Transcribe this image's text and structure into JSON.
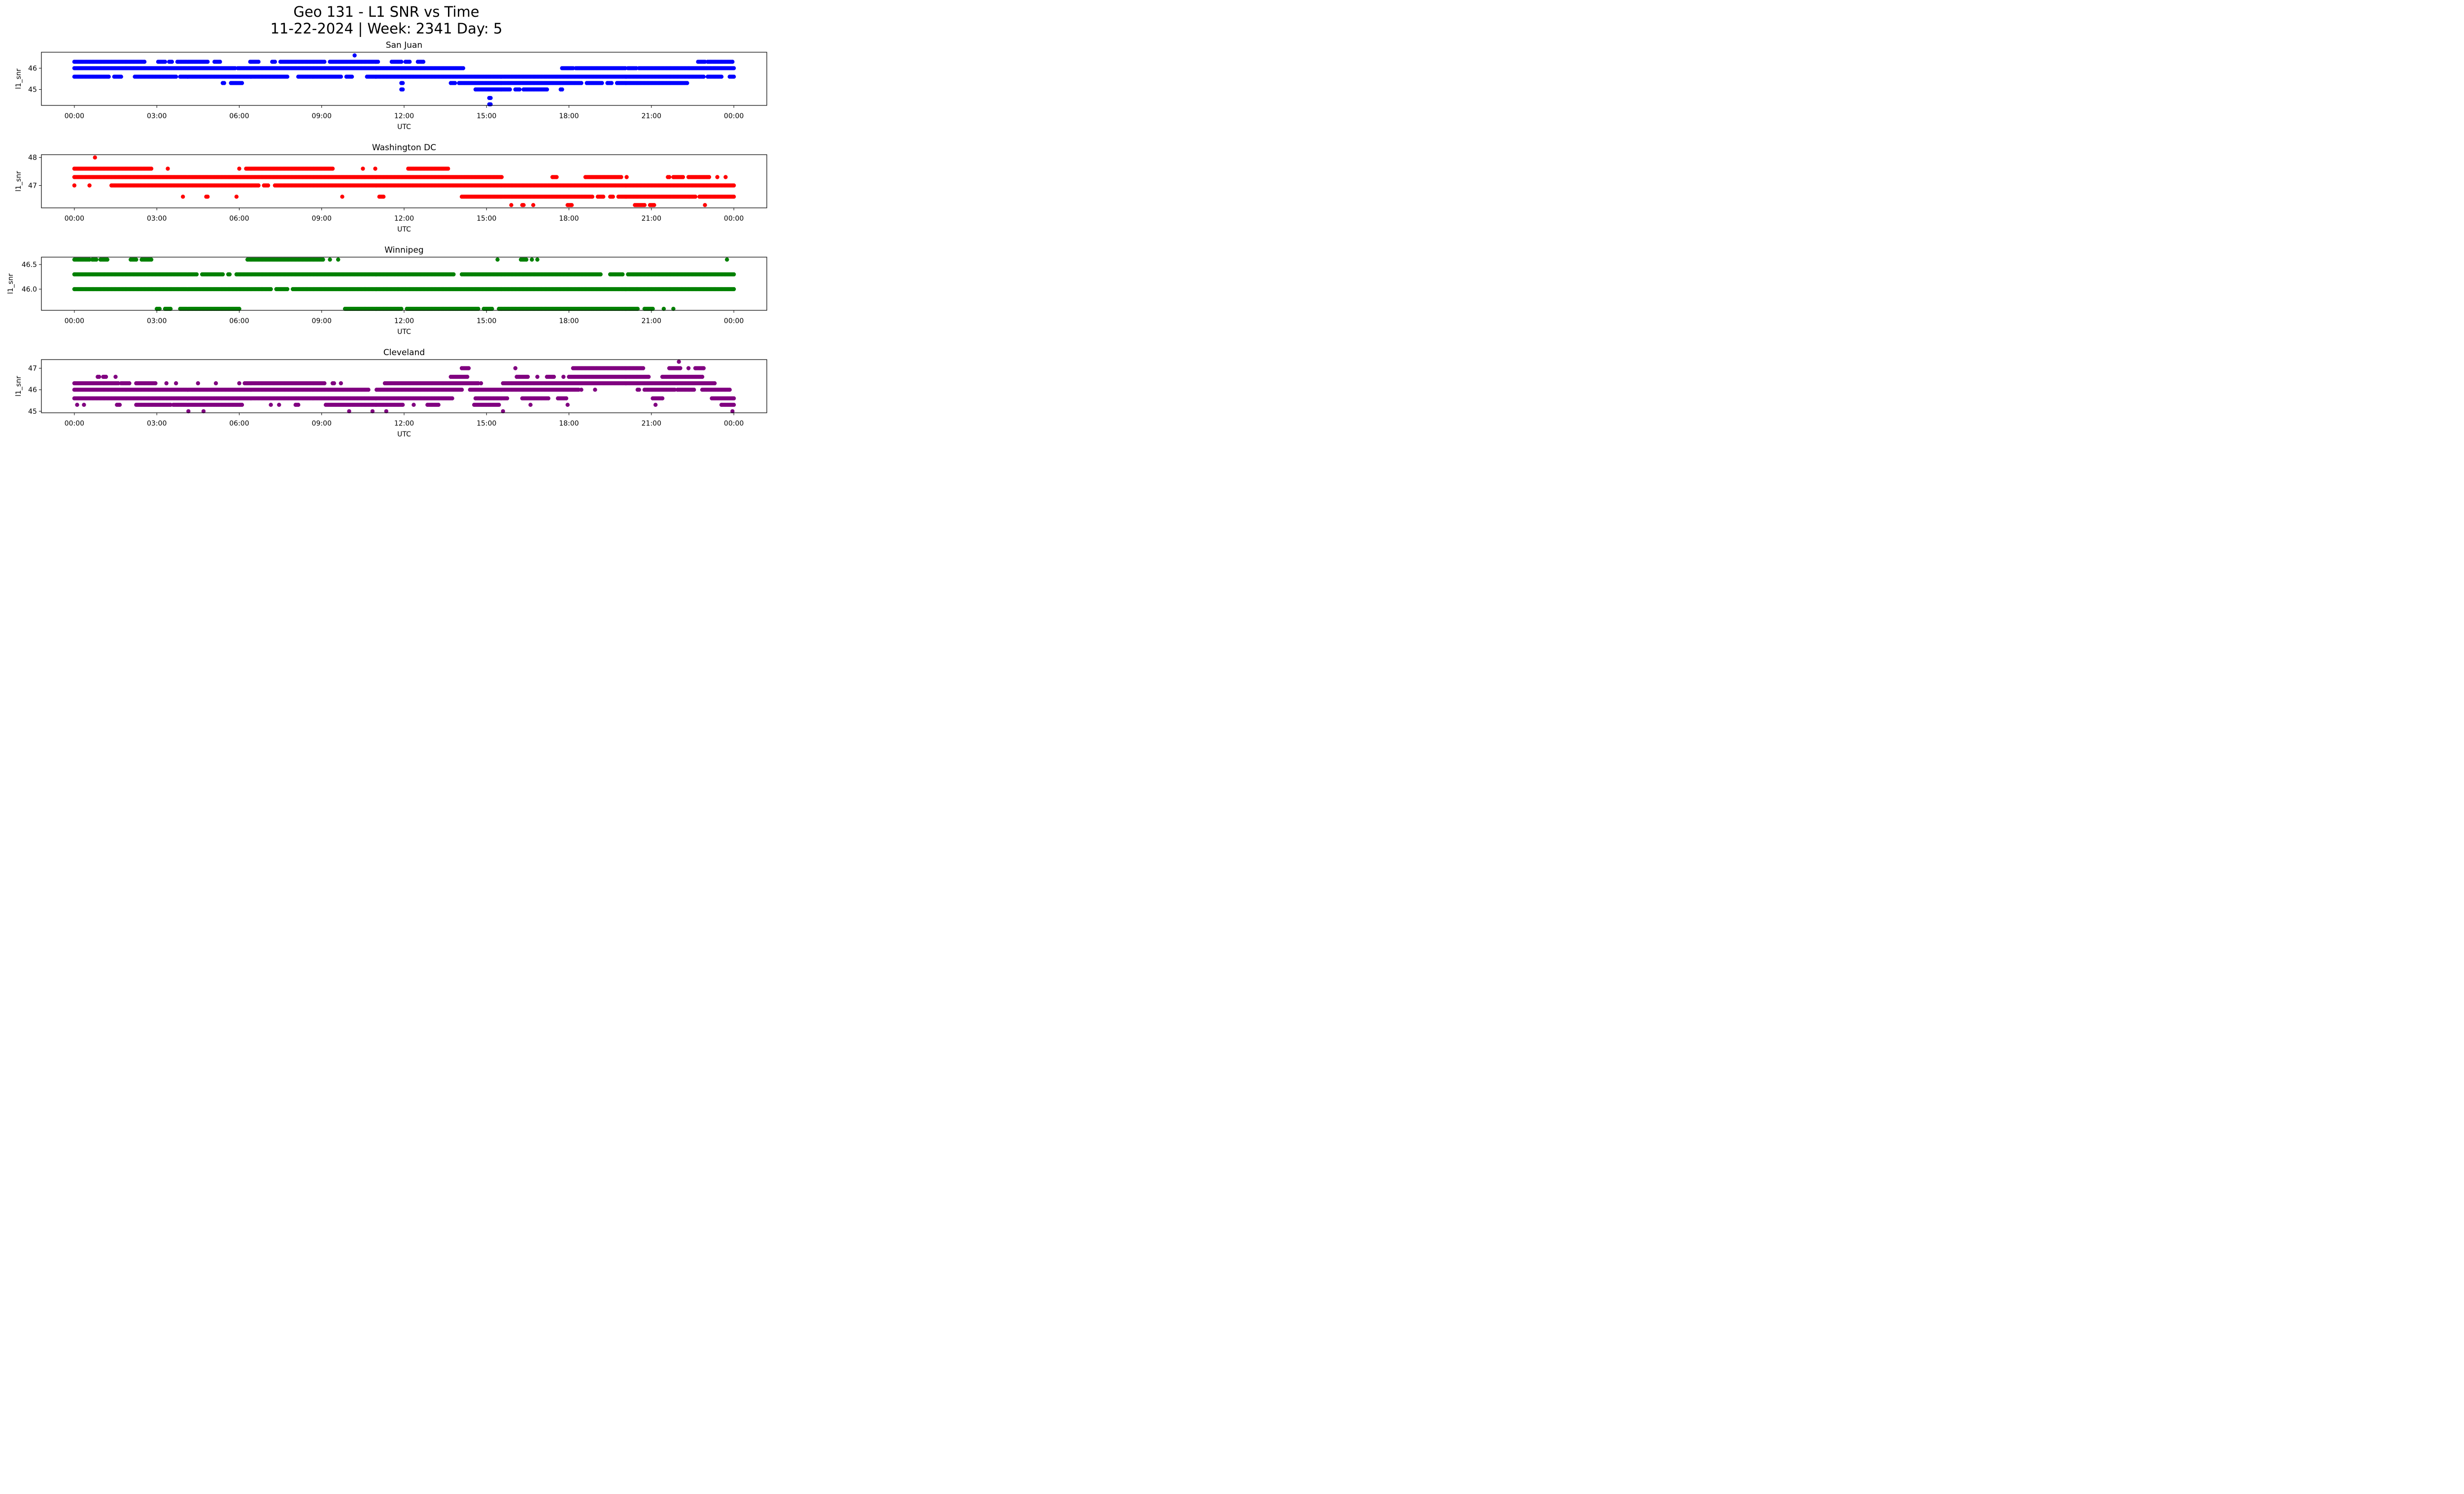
{
  "title_line1": "Geo 131 - L1 SNR vs Time",
  "title_line2": "11-22-2024 | Week: 2341 Day: 5",
  "chart_data": [
    {
      "type": "scatter",
      "title": "San Juan",
      "xlabel": "UTC",
      "ylabel": "l1_snr",
      "color": "#0000ff",
      "xlim_hours": [
        -1.2,
        25.2
      ],
      "ylim": [
        44.25,
        46.75
      ],
      "yticks": [
        45,
        46
      ],
      "ytick_labels": [
        "45",
        "46"
      ],
      "xticks_hours": [
        0,
        3,
        6,
        9,
        12,
        15,
        18,
        21,
        24
      ],
      "xtick_labels": [
        "00:00",
        "03:00",
        "06:00",
        "09:00",
        "12:00",
        "15:00",
        "18:00",
        "21:00",
        "00:00"
      ],
      "grid": false,
      "segments": [
        {
          "y": 46.6,
          "ranges": [
            [
              10.2,
              10.2
            ]
          ]
        },
        {
          "y": 46.3,
          "ranges": [
            [
              0.0,
              2.55
            ],
            [
              3.05,
              3.3
            ],
            [
              3.45,
              3.55
            ],
            [
              3.75,
              4.85
            ],
            [
              5.1,
              5.3
            ],
            [
              6.4,
              6.7
            ],
            [
              7.2,
              7.3
            ],
            [
              7.5,
              9.1
            ],
            [
              9.3,
              11.05
            ],
            [
              11.55,
              11.9
            ],
            [
              12.05,
              12.2
            ],
            [
              12.5,
              12.7
            ],
            [
              22.7,
              22.95
            ],
            [
              23.05,
              23.95
            ]
          ]
        },
        {
          "y": 46.0,
          "ranges": [
            [
              0.0,
              5.85
            ],
            [
              5.95,
              14.15
            ],
            [
              17.75,
              18.15
            ],
            [
              18.25,
              20.05
            ],
            [
              20.15,
              20.45
            ],
            [
              20.55,
              24.0
            ]
          ]
        },
        {
          "y": 45.6,
          "ranges": [
            [
              0.0,
              1.25
            ],
            [
              1.45,
              1.7
            ],
            [
              2.2,
              3.7
            ],
            [
              3.85,
              7.75
            ],
            [
              8.15,
              9.7
            ],
            [
              9.9,
              10.1
            ],
            [
              10.65,
              22.9
            ],
            [
              23.05,
              23.55
            ],
            [
              23.85,
              24.0
            ]
          ]
        },
        {
          "y": 45.3,
          "ranges": [
            [
              5.4,
              5.45
            ],
            [
              5.7,
              6.1
            ],
            [
              11.9,
              11.95
            ],
            [
              13.7,
              13.85
            ],
            [
              14.0,
              18.45
            ],
            [
              18.65,
              19.2
            ],
            [
              19.4,
              19.55
            ],
            [
              19.75,
              22.3
            ]
          ]
        },
        {
          "y": 45.0,
          "ranges": [
            [
              11.9,
              11.95
            ],
            [
              14.6,
              15.85
            ],
            [
              16.05,
              16.2
            ],
            [
              16.35,
              17.2
            ],
            [
              17.7,
              17.75
            ]
          ]
        },
        {
          "y": 44.6,
          "ranges": [
            [
              15.1,
              15.15
            ]
          ]
        },
        {
          "y": 44.3,
          "ranges": [
            [
              15.1,
              15.15
            ]
          ]
        }
      ]
    },
    {
      "type": "scatter",
      "title": "Washington DC",
      "xlabel": "UTC",
      "ylabel": "l1_snr",
      "color": "#ff0000",
      "xlim_hours": [
        -1.2,
        25.2
      ],
      "ylim": [
        46.2,
        48.1
      ],
      "yticks": [
        47,
        48
      ],
      "ytick_labels": [
        "47",
        "48"
      ],
      "xticks_hours": [
        0,
        3,
        6,
        9,
        12,
        15,
        18,
        21,
        24
      ],
      "xtick_labels": [
        "00:00",
        "03:00",
        "06:00",
        "09:00",
        "12:00",
        "15:00",
        "18:00",
        "21:00",
        "00:00"
      ],
      "grid": false,
      "segments": [
        {
          "y": 48.0,
          "ranges": [
            [
              0.75,
              0.75
            ]
          ]
        },
        {
          "y": 47.6,
          "ranges": [
            [
              0.0,
              2.8
            ],
            [
              3.4,
              3.4
            ],
            [
              6.0,
              6.0
            ],
            [
              6.25,
              9.4
            ],
            [
              10.5,
              10.5
            ],
            [
              10.95,
              10.95
            ],
            [
              12.15,
              13.6
            ]
          ]
        },
        {
          "y": 47.3,
          "ranges": [
            [
              0.0,
              15.55
            ],
            [
              17.4,
              17.55
            ],
            [
              18.6,
              19.9
            ],
            [
              20.1,
              20.1
            ],
            [
              21.6,
              21.65
            ],
            [
              21.8,
              22.15
            ],
            [
              22.35,
              23.1
            ],
            [
              23.4,
              23.4
            ],
            [
              23.7,
              23.7
            ]
          ]
        },
        {
          "y": 47.0,
          "ranges": [
            [
              0.0,
              0.0
            ],
            [
              0.55,
              0.55
            ],
            [
              1.35,
              6.7
            ],
            [
              6.9,
              7.05
            ],
            [
              7.3,
              24.0
            ]
          ]
        },
        {
          "y": 46.6,
          "ranges": [
            [
              3.95,
              3.95
            ],
            [
              4.8,
              4.85
            ],
            [
              5.9,
              5.9
            ],
            [
              9.75,
              9.75
            ],
            [
              11.1,
              11.25
            ],
            [
              14.1,
              18.85
            ],
            [
              19.05,
              19.25
            ],
            [
              19.5,
              19.6
            ],
            [
              19.8,
              22.6
            ],
            [
              22.75,
              24.0
            ]
          ]
        },
        {
          "y": 46.3,
          "ranges": [
            [
              15.9,
              15.9
            ],
            [
              16.3,
              16.35
            ],
            [
              16.7,
              16.7
            ],
            [
              17.95,
              18.1
            ],
            [
              20.4,
              20.75
            ],
            [
              20.95,
              21.1
            ],
            [
              22.95,
              22.95
            ]
          ]
        }
      ]
    },
    {
      "type": "scatter",
      "title": "Winnipeg",
      "xlabel": "UTC",
      "ylabel": "l1_snr",
      "color": "#008000",
      "xlim_hours": [
        -1.2,
        25.2
      ],
      "ylim": [
        45.57,
        46.65
      ],
      "yticks": [
        46.0,
        46.5
      ],
      "ytick_labels": [
        "46.0",
        "46.5"
      ],
      "xticks_hours": [
        0,
        3,
        6,
        9,
        12,
        15,
        18,
        21,
        24
      ],
      "xtick_labels": [
        "00:00",
        "03:00",
        "06:00",
        "09:00",
        "12:00",
        "15:00",
        "18:00",
        "21:00",
        "00:00"
      ],
      "grid": false,
      "segments": [
        {
          "y": 46.6,
          "ranges": [
            [
              0.0,
              0.55
            ],
            [
              0.65,
              0.8
            ],
            [
              0.95,
              1.2
            ],
            [
              2.05,
              2.25
            ],
            [
              2.45,
              2.8
            ],
            [
              6.3,
              9.05
            ],
            [
              9.3,
              9.3
            ],
            [
              9.6,
              9.6
            ],
            [
              15.4,
              15.4
            ],
            [
              16.25,
              16.45
            ],
            [
              16.65,
              16.65
            ],
            [
              16.85,
              16.85
            ],
            [
              23.75,
              23.75
            ]
          ]
        },
        {
          "y": 46.3,
          "ranges": [
            [
              0.0,
              4.45
            ],
            [
              4.65,
              5.4
            ],
            [
              5.6,
              5.65
            ],
            [
              5.9,
              13.8
            ],
            [
              14.1,
              19.15
            ],
            [
              19.5,
              19.95
            ],
            [
              20.15,
              24.0
            ]
          ]
        },
        {
          "y": 46.0,
          "ranges": [
            [
              0.0,
              7.15
            ],
            [
              7.35,
              7.75
            ],
            [
              7.95,
              24.0
            ]
          ]
        },
        {
          "y": 45.6,
          "ranges": [
            [
              3.0,
              3.1
            ],
            [
              3.3,
              3.5
            ],
            [
              3.85,
              6.0
            ],
            [
              9.85,
              11.9
            ],
            [
              12.1,
              14.7
            ],
            [
              14.9,
              15.2
            ],
            [
              15.45,
              20.5
            ],
            [
              20.75,
              21.05
            ],
            [
              21.45,
              21.45
            ],
            [
              21.8,
              21.8
            ]
          ]
        }
      ]
    },
    {
      "type": "scatter",
      "title": "Cleveland",
      "xlabel": "UTC",
      "ylabel": "l1_snr",
      "color": "#800080",
      "xlim_hours": [
        -1.2,
        25.2
      ],
      "ylim": [
        44.93,
        47.4
      ],
      "yticks": [
        45,
        46,
        47
      ],
      "ytick_labels": [
        "45",
        "46",
        "47"
      ],
      "xticks_hours": [
        0,
        3,
        6,
        9,
        12,
        15,
        18,
        21,
        24
      ],
      "xtick_labels": [
        "00:00",
        "03:00",
        "06:00",
        "09:00",
        "12:00",
        "15:00",
        "18:00",
        "21:00",
        "00:00"
      ],
      "grid": false,
      "segments": [
        {
          "y": 47.3,
          "ranges": [
            [
              22.0,
              22.0
            ]
          ]
        },
        {
          "y": 47.0,
          "ranges": [
            [
              14.1,
              14.35
            ],
            [
              16.05,
              16.05
            ],
            [
              18.15,
              20.7
            ],
            [
              21.65,
              22.05
            ],
            [
              22.35,
              22.35
            ],
            [
              22.6,
              22.9
            ]
          ]
        },
        {
          "y": 46.6,
          "ranges": [
            [
              0.85,
              0.9
            ],
            [
              1.05,
              1.15
            ],
            [
              1.5,
              1.5
            ],
            [
              13.7,
              14.3
            ],
            [
              16.1,
              16.5
            ],
            [
              16.85,
              16.85
            ],
            [
              17.2,
              17.45
            ],
            [
              17.8,
              17.8
            ],
            [
              18.0,
              20.9
            ],
            [
              21.4,
              22.85
            ]
          ]
        },
        {
          "y": 46.3,
          "ranges": [
            [
              0.0,
              1.6
            ],
            [
              1.7,
              2.0
            ],
            [
              2.25,
              2.95
            ],
            [
              3.35,
              3.35
            ],
            [
              3.7,
              3.7
            ],
            [
              4.5,
              4.5
            ],
            [
              5.15,
              5.15
            ],
            [
              6.0,
              6.0
            ],
            [
              6.2,
              9.1
            ],
            [
              9.4,
              9.45
            ],
            [
              9.7,
              9.7
            ],
            [
              11.3,
              14.7
            ],
            [
              14.8,
              14.8
            ],
            [
              15.6,
              23.3
            ]
          ]
        },
        {
          "y": 46.0,
          "ranges": [
            [
              0.0,
              10.7
            ],
            [
              11.0,
              14.1
            ],
            [
              14.4,
              18.35
            ],
            [
              18.45,
              18.45
            ],
            [
              18.95,
              18.95
            ],
            [
              20.5,
              20.55
            ],
            [
              20.75,
              21.85
            ],
            [
              21.95,
              22.55
            ],
            [
              22.85,
              23.85
            ]
          ]
        },
        {
          "y": 45.6,
          "ranges": [
            [
              0.0,
              13.75
            ],
            [
              14.6,
              15.75
            ],
            [
              16.3,
              17.25
            ],
            [
              17.6,
              17.9
            ],
            [
              21.05,
              21.4
            ],
            [
              23.2,
              24.0
            ]
          ]
        },
        {
          "y": 45.3,
          "ranges": [
            [
              0.1,
              0.1
            ],
            [
              0.35,
              0.35
            ],
            [
              1.55,
              1.65
            ],
            [
              2.25,
              3.5
            ],
            [
              3.6,
              6.1
            ],
            [
              7.15,
              7.15
            ],
            [
              7.45,
              7.45
            ],
            [
              8.05,
              8.15
            ],
            [
              9.15,
              11.95
            ],
            [
              12.35,
              12.35
            ],
            [
              12.85,
              13.25
            ],
            [
              14.55,
              15.45
            ],
            [
              16.6,
              16.6
            ],
            [
              17.95,
              17.95
            ],
            [
              21.15,
              21.15
            ],
            [
              23.55,
              24.0
            ]
          ]
        },
        {
          "y": 45.0,
          "ranges": [
            [
              4.15,
              4.15
            ],
            [
              4.7,
              4.7
            ],
            [
              10.0,
              10.0
            ],
            [
              10.85,
              10.85
            ],
            [
              11.35,
              11.35
            ],
            [
              15.6,
              15.6
            ],
            [
              23.95,
              23.95
            ]
          ]
        }
      ]
    }
  ]
}
